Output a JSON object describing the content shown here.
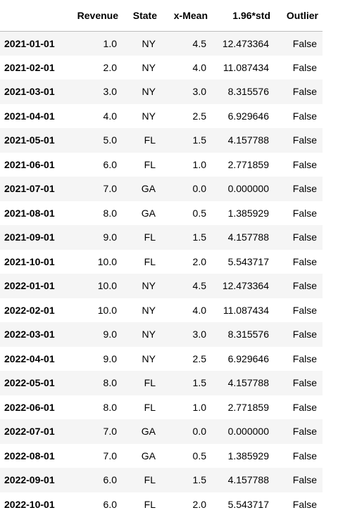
{
  "table": {
    "columns": [
      "",
      "Revenue",
      "State",
      "x-Mean",
      "1.96*std",
      "Outlier"
    ],
    "rows": [
      {
        "index": "2021-01-01",
        "revenue": "1.0",
        "state": "NY",
        "x_mean": "4.5",
        "std196": "12.473364",
        "outlier": "False"
      },
      {
        "index": "2021-02-01",
        "revenue": "2.0",
        "state": "NY",
        "x_mean": "4.0",
        "std196": "11.087434",
        "outlier": "False"
      },
      {
        "index": "2021-03-01",
        "revenue": "3.0",
        "state": "NY",
        "x_mean": "3.0",
        "std196": "8.315576",
        "outlier": "False"
      },
      {
        "index": "2021-04-01",
        "revenue": "4.0",
        "state": "NY",
        "x_mean": "2.5",
        "std196": "6.929646",
        "outlier": "False"
      },
      {
        "index": "2021-05-01",
        "revenue": "5.0",
        "state": "FL",
        "x_mean": "1.5",
        "std196": "4.157788",
        "outlier": "False"
      },
      {
        "index": "2021-06-01",
        "revenue": "6.0",
        "state": "FL",
        "x_mean": "1.0",
        "std196": "2.771859",
        "outlier": "False"
      },
      {
        "index": "2021-07-01",
        "revenue": "7.0",
        "state": "GA",
        "x_mean": "0.0",
        "std196": "0.000000",
        "outlier": "False"
      },
      {
        "index": "2021-08-01",
        "revenue": "8.0",
        "state": "GA",
        "x_mean": "0.5",
        "std196": "1.385929",
        "outlier": "False"
      },
      {
        "index": "2021-09-01",
        "revenue": "9.0",
        "state": "FL",
        "x_mean": "1.5",
        "std196": "4.157788",
        "outlier": "False"
      },
      {
        "index": "2021-10-01",
        "revenue": "10.0",
        "state": "FL",
        "x_mean": "2.0",
        "std196": "5.543717",
        "outlier": "False"
      },
      {
        "index": "2022-01-01",
        "revenue": "10.0",
        "state": "NY",
        "x_mean": "4.5",
        "std196": "12.473364",
        "outlier": "False"
      },
      {
        "index": "2022-02-01",
        "revenue": "10.0",
        "state": "NY",
        "x_mean": "4.0",
        "std196": "11.087434",
        "outlier": "False"
      },
      {
        "index": "2022-03-01",
        "revenue": "9.0",
        "state": "NY",
        "x_mean": "3.0",
        "std196": "8.315576",
        "outlier": "False"
      },
      {
        "index": "2022-04-01",
        "revenue": "9.0",
        "state": "NY",
        "x_mean": "2.5",
        "std196": "6.929646",
        "outlier": "False"
      },
      {
        "index": "2022-05-01",
        "revenue": "8.0",
        "state": "FL",
        "x_mean": "1.5",
        "std196": "4.157788",
        "outlier": "False"
      },
      {
        "index": "2022-06-01",
        "revenue": "8.0",
        "state": "FL",
        "x_mean": "1.0",
        "std196": "2.771859",
        "outlier": "False"
      },
      {
        "index": "2022-07-01",
        "revenue": "7.0",
        "state": "GA",
        "x_mean": "0.0",
        "std196": "0.000000",
        "outlier": "False"
      },
      {
        "index": "2022-08-01",
        "revenue": "7.0",
        "state": "GA",
        "x_mean": "0.5",
        "std196": "1.385929",
        "outlier": "False"
      },
      {
        "index": "2022-09-01",
        "revenue": "6.0",
        "state": "FL",
        "x_mean": "1.5",
        "std196": "4.157788",
        "outlier": "False"
      },
      {
        "index": "2022-10-01",
        "revenue": "6.0",
        "state": "FL",
        "x_mean": "2.0",
        "std196": "5.543717",
        "outlier": "False"
      }
    ]
  }
}
